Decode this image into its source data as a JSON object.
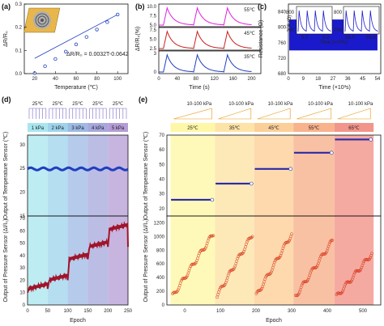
{
  "panels": {
    "a": "(a)",
    "b": "(b)",
    "c": "(c)",
    "d": "(d)",
    "e": "(e)"
  },
  "colors": {
    "blue": "#1f3fbf",
    "red": "#c8201e",
    "magenta": "#e020e0",
    "navy": "#1a1a9a",
    "orange": "#e8660a"
  },
  "chart_data": [
    {
      "id": "a",
      "type": "scatter",
      "xlabel": "Temperature (℃)",
      "ylabel": "ΔR/R₀",
      "xlim": [
        10,
        110
      ],
      "ylim": [
        0,
        0.3
      ],
      "xticks": [
        20,
        40,
        60,
        80,
        100
      ],
      "yticks": [
        0.0,
        0.1,
        0.2,
        0.3
      ],
      "x": [
        20,
        30,
        40,
        50,
        60,
        70,
        80,
        90,
        100
      ],
      "y": [
        0.002,
        0.032,
        0.063,
        0.095,
        0.126,
        0.158,
        0.19,
        0.222,
        0.255
      ],
      "annotation": "ΔR/R₀ = 0.0032T-0.0642"
    },
    {
      "id": "b",
      "type": "line",
      "xlabel": "Time (s)",
      "ylabel": "ΔR/R₀(%)",
      "xlim": [
        0,
        220
      ],
      "xticks": [
        0,
        40,
        80,
        120,
        160,
        200
      ],
      "series": [
        {
          "name": "55℃",
          "ymin": 5.0,
          "ymax": 10.0,
          "yticks": [
            5.0,
            7.5,
            10.0
          ],
          "color": "#e020e0"
        },
        {
          "name": "45℃",
          "ymin": 2.5,
          "ymax": 7.5,
          "yticks": [
            2.5,
            5.0,
            7.5
          ],
          "color": "#c8201e"
        },
        {
          "name": "35℃",
          "ymin": 0,
          "ymax": 3,
          "yticks": [
            0,
            3
          ],
          "color": "#1f3fbf"
        }
      ]
    },
    {
      "id": "c",
      "type": "line",
      "xlabel": "Time (×10³s)",
      "ylabel": "Resistance (Ω)",
      "xlim": [
        0,
        56
      ],
      "ylim": [
        680,
        860
      ],
      "xticks": [
        0,
        9,
        18,
        27,
        36,
        45,
        54
      ],
      "yticks": [
        680,
        720,
        760,
        800,
        840
      ],
      "band_low": 740,
      "band_high": 820,
      "inset_xlabel": "Time (×10³s)",
      "inset_ylabel": "R (Ω)",
      "inset_left_ticks": [
        "0.1",
        "0.2"
      ],
      "inset_right_ticks": [
        "53.0",
        "53.6"
      ],
      "inset_left_yticks": [
        "700",
        "800"
      ],
      "inset_right_yticks": [
        "700",
        "800"
      ]
    },
    {
      "id": "d",
      "type": "line",
      "xlabel": "Epoch",
      "ylabel_top": "Output of Temperature Sensor (℃)",
      "ylabel_bottom": "Output of Pressure Sensor (ΔI/I₀)",
      "xlim": [
        0,
        250
      ],
      "xticks": [
        0,
        50,
        100,
        150,
        200,
        250
      ],
      "top_ylim": [
        15,
        32
      ],
      "top_yticks": [
        15,
        20,
        25,
        30
      ],
      "bottom_ylim": [
        0,
        72
      ],
      "bottom_yticks": [
        0,
        10,
        20,
        30,
        40,
        50,
        60,
        70
      ],
      "temperature_labels": [
        "25℃",
        "25℃",
        "25℃",
        "25℃",
        "25℃"
      ],
      "pressure_labels": [
        "1 kPa",
        "2 kPa",
        "3 kPa",
        "4 kPa",
        "5 kPa"
      ],
      "temperature_value": 25,
      "pressure_levels": [
        13,
        20,
        37,
        47,
        61
      ]
    },
    {
      "id": "e",
      "type": "scatter",
      "xlabel": "Epoch",
      "ylabel_top": "Output of Temperature Sensor (℃)",
      "ylabel_bottom": "Output of Pressure Sensor (ΔI/I₀)",
      "xlim": [
        -50,
        550
      ],
      "xticks": [
        0,
        100,
        200,
        300,
        400,
        500
      ],
      "top_ylim": [
        15,
        70
      ],
      "top_yticks": [
        20,
        30,
        40,
        50,
        60,
        70
      ],
      "bottom_ylim": [
        0,
        1300
      ],
      "bottom_yticks": [
        0,
        200,
        400,
        600,
        800,
        1000,
        1200
      ],
      "range_labels": [
        "10-100 kPa",
        "10-100 kPa",
        "10-100 kPa",
        "10-100 kPa",
        "10-100 kPa"
      ],
      "temperature_labels": [
        "25℃",
        "35℃",
        "45℃",
        "55℃",
        "65℃"
      ],
      "temperature_values": [
        26,
        37,
        47,
        58,
        67
      ],
      "segment_bounds": [
        -40,
        85,
        195,
        305,
        420,
        530
      ],
      "pressure_peak": [
        1000,
        1000,
        1000,
        900,
        700
      ]
    }
  ]
}
